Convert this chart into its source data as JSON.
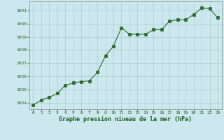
{
  "x": [
    0,
    1,
    2,
    3,
    4,
    5,
    6,
    7,
    8,
    9,
    10,
    11,
    12,
    13,
    14,
    15,
    16,
    17,
    18,
    19,
    20,
    21,
    22,
    23
  ],
  "y": [
    1033.8,
    1034.2,
    1034.4,
    1034.7,
    1035.3,
    1035.5,
    1035.6,
    1035.65,
    1036.3,
    1037.55,
    1038.3,
    1039.7,
    1039.2,
    1039.2,
    1039.2,
    1039.55,
    1039.55,
    1040.2,
    1040.3,
    1040.3,
    1040.7,
    1041.2,
    1041.15,
    1040.45
  ],
  "line_color": "#2d6a2d",
  "marker_color": "#2d6a2d",
  "bg_color": "#cce8ee",
  "grid_color": "#aacccc",
  "xlabel": "Graphe pression niveau de la mer (hPa)",
  "xlabel_color": "#1a5c1a",
  "tick_label_color": "#1a5c1a",
  "ylim": [
    1033.5,
    1041.7
  ],
  "yticks": [
    1034,
    1035,
    1036,
    1037,
    1038,
    1039,
    1040,
    1041
  ],
  "xticks": [
    0,
    1,
    2,
    3,
    4,
    5,
    6,
    7,
    8,
    9,
    10,
    11,
    12,
    13,
    14,
    15,
    16,
    17,
    18,
    19,
    20,
    21,
    22,
    23
  ],
  "xlim": [
    -0.5,
    23.5
  ]
}
